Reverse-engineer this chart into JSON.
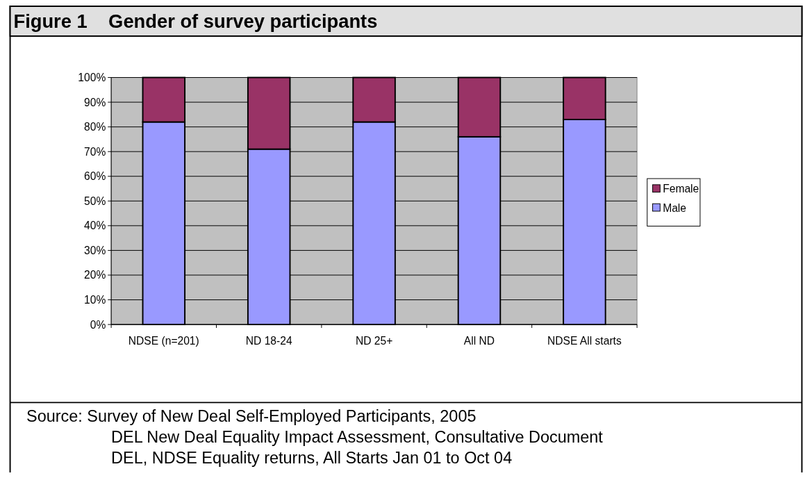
{
  "chart_data": {
    "type": "bar",
    "title": "Figure 1    Gender of survey participants",
    "categories": [
      "NDSE (n=201)",
      "ND 18-24",
      "ND 25+",
      "All ND",
      "NDSE All starts"
    ],
    "stacked": true,
    "series": [
      {
        "name": "Male",
        "color": "#9999ff",
        "values": [
          82,
          71,
          82,
          76,
          83
        ]
      },
      {
        "name": "Female",
        "color": "#993366",
        "values": [
          18,
          29,
          18,
          24,
          17
        ]
      }
    ],
    "ylim": [
      0,
      100
    ],
    "yticks": [
      {
        "value": 0,
        "label": "0%"
      },
      {
        "value": 10,
        "label": "10%"
      },
      {
        "value": 20,
        "label": "20%"
      },
      {
        "value": 30,
        "label": "30%"
      },
      {
        "value": 40,
        "label": "40%"
      },
      {
        "value": 50,
        "label": "50%"
      },
      {
        "value": 60,
        "label": "60%"
      },
      {
        "value": 70,
        "label": "70%"
      },
      {
        "value": 80,
        "label": "80%"
      },
      {
        "value": 90,
        "label": "90%"
      },
      {
        "value": 100,
        "label": "100%"
      }
    ],
    "grid": "y",
    "legend": "right",
    "annotations": [
      "Source: Survey of New Deal Self-Employed Participants, 2005",
      "DEL New Deal Equality Impact Assessment, Consultative Document",
      "DEL, NDSE Equality returns, All Starts Jan 01 to Oct 04"
    ]
  }
}
